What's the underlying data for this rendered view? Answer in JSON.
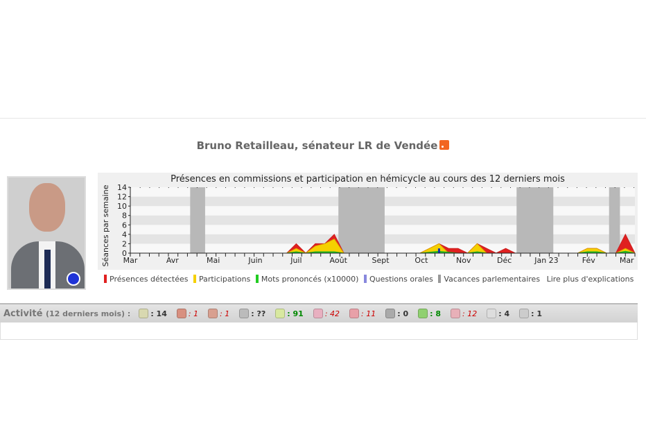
{
  "page": {
    "title": "Bruno Retailleau, sénateur LR de Vendée",
    "rss_icon": "rss-icon"
  },
  "chart_data": {
    "type": "area",
    "title": "Présences en commissions et participation en hémicycle au cours des 12 derniers mois",
    "ylabel": "Séances par semaine",
    "ylim": [
      0,
      14
    ],
    "yticks": [
      0,
      2,
      4,
      6,
      8,
      10,
      12,
      14
    ],
    "xrange": [
      "2022-03-01",
      "2023-03-07"
    ],
    "xticks": [
      {
        "date": "2022-03-01",
        "label": "Mar"
      },
      {
        "date": "2022-04-01",
        "label": "Avr"
      },
      {
        "date": "2022-05-01",
        "label": "Mai"
      },
      {
        "date": "2022-06-01",
        "label": "Juin"
      },
      {
        "date": "2022-07-01",
        "label": "Juil"
      },
      {
        "date": "2022-08-01",
        "label": "Août"
      },
      {
        "date": "2022-09-01",
        "label": "Sept"
      },
      {
        "date": "2022-10-01",
        "label": "Oct"
      },
      {
        "date": "2022-11-01",
        "label": "Nov"
      },
      {
        "date": "2022-12-01",
        "label": "Déc"
      },
      {
        "date": "2023-01-01",
        "label": "Jan 23"
      },
      {
        "date": "2023-02-01",
        "label": "Fév"
      },
      {
        "date": "2023-03-01",
        "label": "Mar"
      }
    ],
    "grid": true,
    "vacances": [
      [
        "2022-04-14",
        "2022-04-25"
      ],
      [
        "2022-08-01",
        "2022-09-04"
      ],
      [
        "2022-12-10",
        "2023-01-06"
      ],
      [
        "2023-02-16",
        "2023-02-24"
      ]
    ],
    "series": [
      {
        "name": "Présences détectées",
        "color": "#e02020",
        "points": [
          [
            "2022-06-24",
            0
          ],
          [
            "2022-07-01",
            2
          ],
          [
            "2022-07-08",
            0
          ],
          [
            "2022-07-15",
            2
          ],
          [
            "2022-07-22",
            2
          ],
          [
            "2022-07-29",
            4
          ],
          [
            "2022-08-05",
            0
          ],
          [
            "2022-09-30",
            0
          ],
          [
            "2022-10-14",
            2
          ],
          [
            "2022-10-21",
            1
          ],
          [
            "2022-10-28",
            1
          ],
          [
            "2022-11-04",
            0
          ],
          [
            "2022-11-11",
            2
          ],
          [
            "2022-11-18",
            1
          ],
          [
            "2022-11-25",
            0
          ],
          [
            "2022-12-02",
            1
          ],
          [
            "2022-12-09",
            0
          ],
          [
            "2023-01-24",
            0
          ],
          [
            "2023-01-31",
            1
          ],
          [
            "2023-02-07",
            1
          ],
          [
            "2023-02-14",
            0
          ],
          [
            "2023-02-21",
            0
          ],
          [
            "2023-02-28",
            4
          ],
          [
            "2023-03-07",
            0
          ]
        ]
      },
      {
        "name": "Participations",
        "color": "#f5d000",
        "points": [
          [
            "2022-06-24",
            0
          ],
          [
            "2022-07-01",
            1
          ],
          [
            "2022-07-08",
            0
          ],
          [
            "2022-07-15",
            1.5
          ],
          [
            "2022-07-22",
            2
          ],
          [
            "2022-07-29",
            3
          ],
          [
            "2022-08-05",
            0
          ],
          [
            "2022-09-30",
            0
          ],
          [
            "2022-10-14",
            2
          ],
          [
            "2022-10-21",
            0
          ],
          [
            "2022-11-04",
            0
          ],
          [
            "2022-11-11",
            2
          ],
          [
            "2022-11-18",
            0
          ],
          [
            "2023-01-24",
            0
          ],
          [
            "2023-01-31",
            1
          ],
          [
            "2023-02-07",
            1
          ],
          [
            "2023-02-14",
            0
          ],
          [
            "2023-02-21",
            0
          ],
          [
            "2023-02-28",
            1
          ],
          [
            "2023-03-07",
            0
          ]
        ]
      },
      {
        "name": "Mots prononcés (x10000)",
        "color": "#22cc22",
        "points": [
          [
            "2022-06-24",
            0
          ],
          [
            "2022-07-01",
            0.3
          ],
          [
            "2022-07-08",
            0
          ],
          [
            "2022-07-15",
            0.3
          ],
          [
            "2022-07-29",
            0.3
          ],
          [
            "2022-08-05",
            0
          ],
          [
            "2022-09-30",
            0
          ],
          [
            "2022-10-14",
            0.4
          ],
          [
            "2022-10-28",
            0
          ],
          [
            "2022-11-04",
            0
          ],
          [
            "2022-11-11",
            0.3
          ],
          [
            "2022-11-18",
            0
          ],
          [
            "2023-01-24",
            0
          ],
          [
            "2023-01-31",
            0.3
          ],
          [
            "2023-02-07",
            0.3
          ],
          [
            "2023-02-14",
            0
          ],
          [
            "2023-02-21",
            0
          ],
          [
            "2023-02-28",
            0.4
          ],
          [
            "2023-03-07",
            0
          ]
        ]
      },
      {
        "name": "Questions orales",
        "color": "#8888dd",
        "bars": [
          [
            "2022-10-14",
            1
          ]
        ]
      }
    ],
    "vacances_label": "Vacances parlementaires",
    "vacances_color": "#999999",
    "explain_link": "Lire plus d'explications"
  },
  "activity": {
    "label": "Activité",
    "period": "(12 derniers mois) :",
    "items": [
      {
        "icon": "calendar-icon",
        "value": ": 14",
        "style": "",
        "color": "#d8d8b0"
      },
      {
        "icon": "person-icon",
        "value": ": 1",
        "style": "red",
        "color": "#d89080"
      },
      {
        "icon": "person-speaking-icon",
        "value": ": 1",
        "style": "red",
        "color": "#d8a090"
      },
      {
        "icon": "microphone-icon",
        "value": ": ??",
        "style": "",
        "color": "#bbbbbb"
      },
      {
        "icon": "document-green-icon",
        "value": ": 91",
        "style": "green",
        "color": "#d8e8a0"
      },
      {
        "icon": "document-edit-icon",
        "value": ": 42",
        "style": "red",
        "color": "#e8b0c0"
      },
      {
        "icon": "document-red-icon",
        "value": ": 11",
        "style": "red",
        "color": "#e8a0a8"
      },
      {
        "icon": "document-person-icon",
        "value": ": 0",
        "style": "",
        "color": "#aaaaaa"
      },
      {
        "icon": "person-green-icon",
        "value": ": 8",
        "style": "green",
        "color": "#90d070"
      },
      {
        "icon": "group-icon",
        "value": ": 12",
        "style": "red",
        "color": "#e8b0b8"
      },
      {
        "icon": "pencil-icon",
        "value": ": 4",
        "style": "",
        "color": "#dddddd"
      },
      {
        "icon": "hand-icon",
        "value": ": 1",
        "style": "",
        "color": "#cccccc"
      }
    ]
  }
}
